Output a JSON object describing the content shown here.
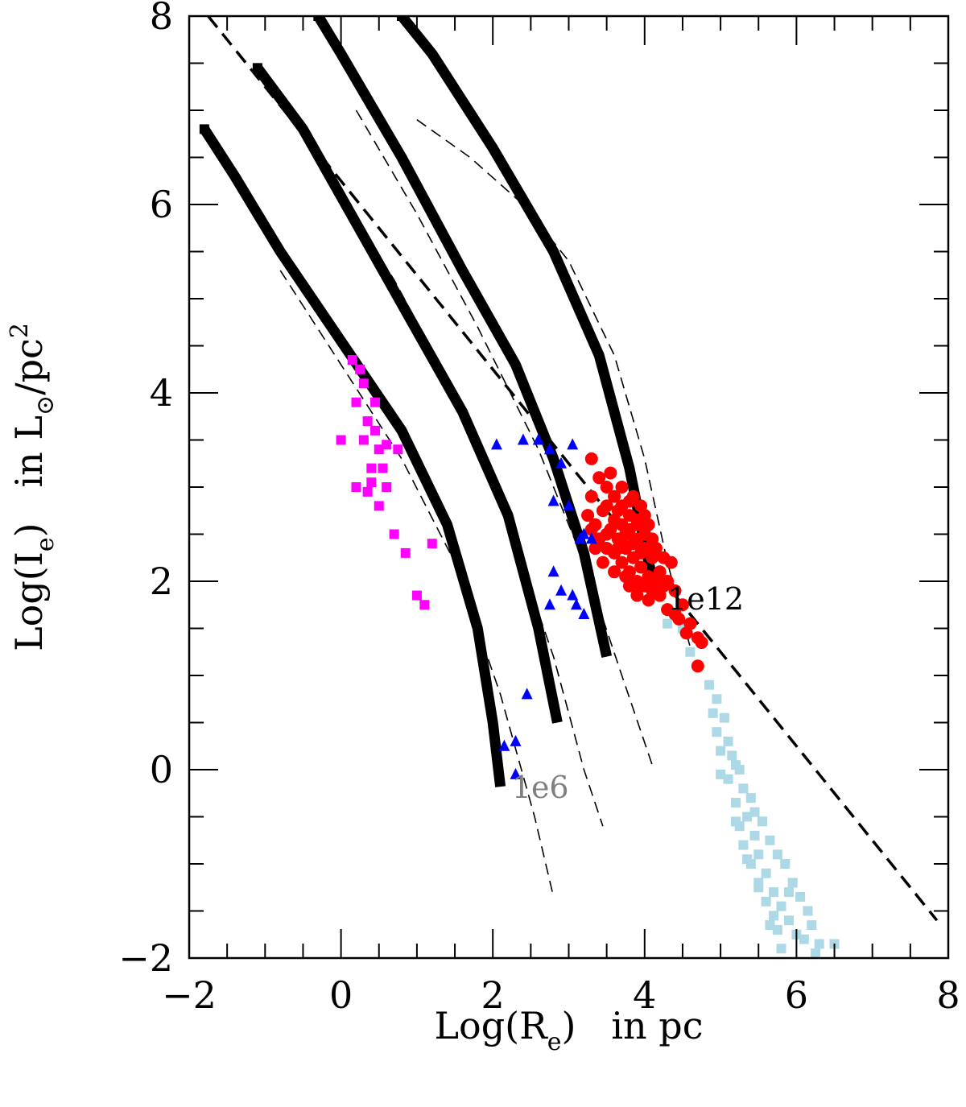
{
  "chart_data": {
    "type": "scatter",
    "title": "",
    "xlabel": {
      "prefix": "Log(R",
      "sub": "e",
      "suffix": ")   in pc"
    },
    "ylabel": {
      "prefix": "Log(I",
      "sub": "e",
      "suffix": ")   in L",
      "sun_symbol": "⊙",
      "unit": "/pc",
      "sup": "2"
    },
    "xlim": [
      -2,
      8
    ],
    "ylim": [
      -2,
      8
    ],
    "x_ticks": [
      -2,
      0,
      2,
      4,
      6,
      8
    ],
    "y_ticks": [
      -2,
      0,
      2,
      4,
      6,
      8
    ],
    "x_tick_labels": [
      "−2",
      "0",
      "2",
      "4",
      "6",
      "8"
    ],
    "y_tick_labels": [
      "−2",
      "0",
      "2",
      "4",
      "6",
      "8"
    ],
    "x_minor_step": 0.5,
    "y_minor_step": 0.5,
    "grid": false,
    "legend": "none",
    "colors": {
      "models": "#000000",
      "magenta": "#ff00ff",
      "blue": "#0000ff",
      "red": "#ff0000",
      "lightblue": "#add8e6",
      "annotation_low": "#808080",
      "annotation_high": "#000000"
    },
    "reference_line": {
      "style": "thick-dashed",
      "points": [
        [
          -1.75,
          8.0
        ],
        [
          7.85,
          -1.6
        ]
      ]
    },
    "model_tracks": [
      {
        "points": [
          [
            -1.8,
            6.8
          ],
          [
            -1.4,
            6.3
          ],
          [
            -0.8,
            5.5
          ],
          [
            0.0,
            4.55
          ],
          [
            0.8,
            3.6
          ],
          [
            1.4,
            2.6
          ],
          [
            1.8,
            1.5
          ],
          [
            2.0,
            0.5
          ],
          [
            2.1,
            -0.18
          ]
        ]
      },
      {
        "points": [
          [
            -1.1,
            7.45
          ],
          [
            -0.5,
            6.8
          ],
          [
            0.2,
            5.8
          ],
          [
            0.9,
            4.8
          ],
          [
            1.6,
            3.8
          ],
          [
            2.2,
            2.7
          ],
          [
            2.6,
            1.5
          ],
          [
            2.85,
            0.5
          ]
        ]
      },
      {
        "points": [
          [
            -0.3,
            8.0
          ],
          [
            0.0,
            7.6
          ],
          [
            0.8,
            6.5
          ],
          [
            1.6,
            5.3
          ],
          [
            2.3,
            4.3
          ],
          [
            2.8,
            3.3
          ],
          [
            3.2,
            2.3
          ],
          [
            3.5,
            1.2
          ]
        ]
      },
      {
        "points": [
          [
            0.8,
            8.0
          ],
          [
            1.2,
            7.6
          ],
          [
            2.0,
            6.6
          ],
          [
            2.8,
            5.5
          ],
          [
            3.4,
            4.4
          ],
          [
            3.8,
            3.2
          ],
          [
            4.0,
            2.4
          ],
          [
            4.15,
            1.85
          ]
        ]
      }
    ],
    "thin_dashed_tracks": [
      {
        "points": [
          [
            -0.8,
            5.3
          ],
          [
            0.0,
            4.3
          ],
          [
            0.8,
            3.3
          ],
          [
            1.5,
            2.2
          ],
          [
            2.1,
            0.8
          ],
          [
            2.55,
            -0.5
          ],
          [
            2.8,
            -1.35
          ]
        ]
      },
      {
        "points": [
          [
            -0.1,
            6.2
          ],
          [
            0.7,
            5.2
          ],
          [
            1.5,
            4.0
          ],
          [
            2.2,
            2.6
          ],
          [
            2.8,
            1.2
          ],
          [
            3.2,
            0.0
          ],
          [
            3.45,
            -0.6
          ]
        ]
      },
      {
        "points": [
          [
            0.2,
            7.0
          ],
          [
            1.0,
            5.9
          ],
          [
            1.8,
            4.7
          ],
          [
            2.6,
            3.4
          ],
          [
            3.2,
            2.2
          ],
          [
            3.7,
            1.0
          ],
          [
            4.1,
            0.05
          ]
        ]
      },
      {
        "points": [
          [
            1.0,
            6.9
          ],
          [
            1.7,
            6.5
          ],
          [
            2.4,
            6.0
          ],
          [
            3.0,
            5.4
          ],
          [
            3.6,
            4.4
          ],
          [
            4.0,
            3.3
          ],
          [
            4.3,
            2.2
          ],
          [
            4.6,
            1.3
          ]
        ]
      }
    ],
    "series_magenta": [
      [
        0.15,
        4.35
      ],
      [
        0.25,
        4.25
      ],
      [
        0.3,
        4.1
      ],
      [
        0.2,
        3.9
      ],
      [
        0.35,
        3.7
      ],
      [
        0.45,
        3.6
      ],
      [
        0.3,
        3.5
      ],
      [
        0.5,
        3.4
      ],
      [
        0.4,
        3.2
      ],
      [
        0.6,
        3.0
      ],
      [
        0.35,
        2.95
      ],
      [
        0.5,
        2.8
      ],
      [
        0.7,
        2.5
      ],
      [
        0.85,
        2.3
      ],
      [
        1.0,
        1.85
      ],
      [
        1.1,
        1.75
      ],
      [
        0.0,
        3.5
      ],
      [
        0.2,
        3.0
      ],
      [
        0.4,
        3.05
      ],
      [
        0.55,
        3.2
      ],
      [
        0.6,
        3.45
      ],
      [
        0.75,
        3.4
      ],
      [
        1.2,
        2.4
      ],
      [
        0.45,
        3.9
      ]
    ],
    "series_blue": [
      [
        2.05,
        3.45
      ],
      [
        2.4,
        3.5
      ],
      [
        2.6,
        3.5
      ],
      [
        2.75,
        3.4
      ],
      [
        3.05,
        3.45
      ],
      [
        2.8,
        2.85
      ],
      [
        3.0,
        2.8
      ],
      [
        2.9,
        3.25
      ],
      [
        3.2,
        2.5
      ],
      [
        3.3,
        2.45
      ],
      [
        2.8,
        2.1
      ],
      [
        2.9,
        1.9
      ],
      [
        3.05,
        1.85
      ],
      [
        2.75,
        1.75
      ],
      [
        3.1,
        1.75
      ],
      [
        3.2,
        1.65
      ],
      [
        2.45,
        0.8
      ],
      [
        2.15,
        0.25
      ],
      [
        2.3,
        0.3
      ],
      [
        2.3,
        -0.05
      ],
      [
        3.15,
        2.45
      ]
    ],
    "series_red": [
      [
        3.3,
        3.3
      ],
      [
        3.4,
        3.1
      ],
      [
        3.5,
        3.0
      ],
      [
        3.6,
        2.9
      ],
      [
        3.7,
        2.8
      ],
      [
        3.8,
        2.7
      ],
      [
        3.9,
        2.6
      ],
      [
        4.0,
        2.5
      ],
      [
        3.45,
        2.75
      ],
      [
        3.55,
        2.55
      ],
      [
        3.65,
        2.45
      ],
      [
        3.75,
        2.35
      ],
      [
        3.85,
        2.25
      ],
      [
        3.95,
        2.15
      ],
      [
        4.05,
        2.05
      ],
      [
        4.15,
        2.0
      ],
      [
        4.25,
        1.95
      ],
      [
        3.3,
        2.55
      ],
      [
        3.4,
        2.45
      ],
      [
        3.5,
        2.35
      ],
      [
        3.6,
        2.3
      ],
      [
        3.7,
        2.2
      ],
      [
        3.8,
        2.1
      ],
      [
        3.9,
        2.0
      ],
      [
        4.0,
        1.95
      ],
      [
        3.6,
        2.65
      ],
      [
        3.7,
        2.6
      ],
      [
        3.8,
        2.55
      ],
      [
        3.9,
        2.45
      ],
      [
        4.0,
        2.35
      ],
      [
        4.1,
        2.25
      ],
      [
        4.2,
        2.1
      ],
      [
        4.3,
        2.0
      ],
      [
        4.4,
        1.9
      ],
      [
        4.5,
        1.75
      ],
      [
        4.6,
        1.55
      ],
      [
        4.7,
        1.4
      ],
      [
        4.75,
        1.35
      ],
      [
        4.7,
        1.1
      ],
      [
        3.5,
        2.8
      ],
      [
        3.65,
        2.75
      ],
      [
        3.75,
        2.5
      ],
      [
        3.85,
        2.4
      ],
      [
        3.95,
        2.3
      ],
      [
        4.05,
        2.6
      ],
      [
        4.1,
        2.45
      ],
      [
        3.95,
        2.8
      ],
      [
        3.85,
        2.9
      ],
      [
        3.35,
        2.35
      ],
      [
        3.45,
        2.2
      ],
      [
        3.6,
        2.1
      ],
      [
        3.75,
        2.05
      ],
      [
        3.9,
        1.85
      ],
      [
        4.05,
        1.8
      ],
      [
        4.3,
        1.7
      ],
      [
        4.45,
        1.6
      ],
      [
        4.55,
        1.45
      ],
      [
        3.55,
        3.15
      ],
      [
        3.7,
        3.0
      ],
      [
        3.8,
        2.85
      ],
      [
        4.15,
        2.35
      ],
      [
        4.25,
        2.25
      ],
      [
        4.35,
        2.2
      ],
      [
        4.05,
        1.95
      ],
      [
        3.65,
        2.35
      ],
      [
        3.7,
        2.4
      ],
      [
        3.5,
        2.5
      ],
      [
        3.9,
        2.65
      ],
      [
        4.0,
        2.7
      ],
      [
        3.25,
        2.7
      ],
      [
        3.3,
        2.9
      ],
      [
        3.35,
        2.6
      ],
      [
        3.8,
        1.95
      ],
      [
        3.95,
        1.95
      ],
      [
        4.1,
        1.9
      ],
      [
        4.2,
        1.85
      ],
      [
        4.4,
        1.65
      ]
    ],
    "series_lightblue": [
      [
        4.3,
        1.55
      ],
      [
        4.5,
        1.5
      ],
      [
        4.6,
        1.25
      ],
      [
        4.85,
        0.9
      ],
      [
        4.95,
        0.75
      ],
      [
        4.9,
        0.6
      ],
      [
        5.05,
        0.55
      ],
      [
        4.95,
        0.4
      ],
      [
        5.1,
        0.3
      ],
      [
        5.0,
        0.2
      ],
      [
        5.2,
        0.05
      ],
      [
        5.1,
        -0.1
      ],
      [
        5.3,
        -0.2
      ],
      [
        5.2,
        -0.35
      ],
      [
        5.35,
        -0.5
      ],
      [
        5.25,
        -0.6
      ],
      [
        5.45,
        -0.7
      ],
      [
        5.3,
        -0.8
      ],
      [
        5.5,
        -0.9
      ],
      [
        5.4,
        -1.0
      ],
      [
        5.6,
        -1.1
      ],
      [
        5.5,
        -1.2
      ],
      [
        5.7,
        -1.3
      ],
      [
        5.6,
        -1.4
      ],
      [
        5.8,
        -1.45
      ],
      [
        5.7,
        -1.55
      ],
      [
        5.9,
        -1.6
      ],
      [
        5.75,
        -1.7
      ],
      [
        6.0,
        -1.75
      ],
      [
        6.1,
        -1.8
      ],
      [
        6.3,
        -1.85
      ],
      [
        6.5,
        -1.85
      ],
      [
        5.15,
        0.15
      ],
      [
        5.4,
        -0.3
      ],
      [
        5.55,
        -0.55
      ],
      [
        5.65,
        -0.75
      ],
      [
        5.85,
        -1.0
      ],
      [
        5.95,
        -1.2
      ],
      [
        6.05,
        -1.35
      ],
      [
        6.15,
        -1.5
      ],
      [
        5.0,
        -0.05
      ],
      [
        5.2,
        -0.55
      ],
      [
        5.35,
        -0.95
      ],
      [
        5.5,
        -1.25
      ],
      [
        5.65,
        -1.65
      ],
      [
        5.8,
        -1.9
      ],
      [
        6.2,
        -1.65
      ],
      [
        5.25,
        0.0
      ],
      [
        5.45,
        -0.45
      ],
      [
        5.75,
        -0.9
      ],
      [
        5.9,
        -1.3
      ],
      [
        6.25,
        -1.95
      ]
    ],
    "annotations": [
      {
        "text": "1e6",
        "x": 2.25,
        "y": -0.3,
        "color": "#808080"
      },
      {
        "text": "1e12",
        "x": 4.3,
        "y": 1.7,
        "color": "#000000"
      }
    ]
  }
}
